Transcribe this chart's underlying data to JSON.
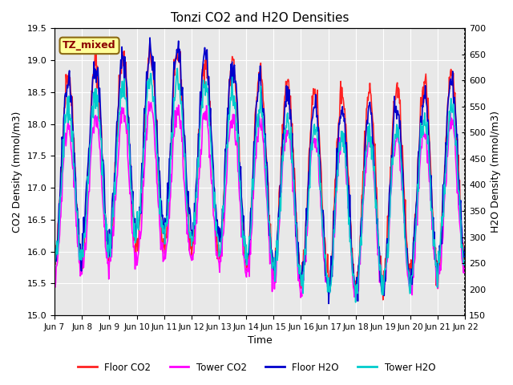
{
  "title": "Tonzi CO2 and H2O Densities",
  "xlabel": "Time",
  "ylabel_left": "CO2 Density (mmol/m3)",
  "ylabel_right": "H2O Density (mmol/m3)",
  "annotation": "TZ_mixed",
  "annotation_color": "#8B0000",
  "annotation_bg": "#FFFF99",
  "annotation_border": "#8B6914",
  "ylim_left": [
    15.0,
    19.5
  ],
  "ylim_right": [
    150,
    700
  ],
  "yticks_left": [
    15.0,
    15.5,
    16.0,
    16.5,
    17.0,
    17.5,
    18.0,
    18.5,
    19.0,
    19.5
  ],
  "yticks_right": [
    150,
    200,
    250,
    300,
    350,
    400,
    450,
    500,
    550,
    600,
    650,
    700
  ],
  "xtick_labels": [
    "Jun 7",
    "Jun 8",
    "Jun 9",
    "Jun 10",
    "Jun 11",
    "Jun 12",
    "Jun 13",
    "Jun 14",
    "Jun 15",
    "Jun 16",
    "Jun 17",
    "Jun 18",
    "Jun 19",
    "Jun 20",
    "Jun 21",
    "Jun 22"
  ],
  "n_days": 15,
  "n_points_per_day": 48,
  "colors": {
    "floor_co2": "#FF2222",
    "tower_co2": "#FF00FF",
    "floor_h2o": "#0000CC",
    "tower_h2o": "#00CCCC"
  },
  "legend_labels": [
    "Floor CO2",
    "Tower CO2",
    "Floor H2O",
    "Tower H2O"
  ],
  "background_color": "#E8E8E8",
  "grid_color": "white"
}
